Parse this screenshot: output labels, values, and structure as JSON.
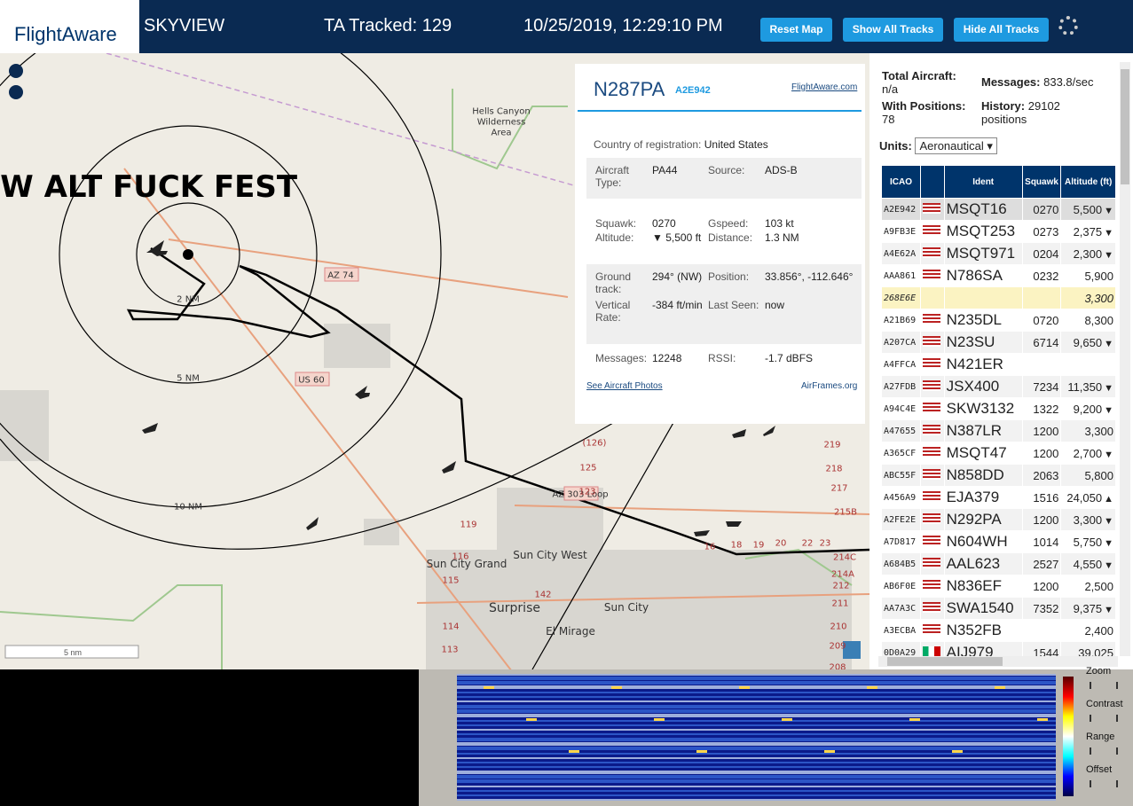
{
  "header": {
    "logo": "FlightAware",
    "app": "SKYVIEW",
    "tracked": "TA Tracked: 129",
    "datetime": "10/25/2019, 12:29:10 PM",
    "buttons": [
      "Reset Map",
      "Show All Tracks",
      "Hide All Tracks"
    ]
  },
  "map": {
    "labels": [
      "LOW ALT FUCK FEST",
      "Hells Canyon",
      "Wilderness",
      "Area",
      "2 NM",
      "5 NM",
      "10 NM",
      "AZ 74",
      "US 60",
      "AZ 303 Loop",
      "Sun City Grand",
      "Sun City West",
      "Surprise",
      "Sun City",
      "El Mirage",
      "(126)",
      "125",
      "123",
      "119",
      "116",
      "115",
      "114",
      "113",
      "142",
      "219",
      "218",
      "217",
      "215B",
      "214C",
      "214A",
      "212",
      "211",
      "210",
      "209",
      "208",
      "16",
      "18",
      "19",
      "20",
      "22",
      "23"
    ],
    "scale": "5 nm"
  },
  "popup": {
    "callsign": "N287PA",
    "icao": "A2E942",
    "link": "FlightAware.com",
    "country_label": "Country of registration:",
    "country": "United States",
    "fields": [
      [
        "Aircraft Type:",
        "PA44",
        "Source:",
        "ADS-B"
      ],
      [
        "Squawk:",
        "0270",
        "Gspeed:",
        "103 kt"
      ],
      [
        "Altitude:",
        "▼ 5,500 ft",
        "Distance:",
        "1.3 NM"
      ],
      [
        "Ground track:",
        "294° (NW)",
        "Position:",
        "33.856°, -112.646°"
      ],
      [
        "Vertical Rate:",
        "-384 ft/min",
        "Last Seen:",
        "now"
      ],
      [
        "Messages:",
        "12248",
        "RSSI:",
        "-1.7 dBFS"
      ]
    ],
    "photos": "See Aircraft Photos",
    "airframes": "AirFrames.org"
  },
  "stats": {
    "total_label": "Total Aircraft:",
    "total": "n/a",
    "messages_label": "Messages:",
    "messages": "833.8/sec",
    "positions_label": "With Positions:",
    "positions": "78",
    "history_label": "History:",
    "history": "29102 positions",
    "units_label": "Units:",
    "units": "Aeronautical"
  },
  "table": {
    "headers": [
      "ICAO",
      "Ident",
      "Squawk",
      "Altitude (ft)"
    ],
    "rows": [
      [
        "A2E942",
        "us",
        "MSQT16",
        "0270",
        "5,500",
        "▼"
      ],
      [
        "A9FB3E",
        "us",
        "MSQT253",
        "0273",
        "2,375",
        "▼"
      ],
      [
        "A4E62A",
        "us",
        "MSQT971",
        "0204",
        "2,300",
        "▼"
      ],
      [
        "AAA861",
        "us",
        "N786SA",
        "0232",
        "5,900",
        null
      ],
      [
        "268E6E",
        null,
        null,
        null,
        "3,300",
        null
      ],
      [
        "A21B69",
        "us",
        "N235DL",
        "0720",
        "8,300",
        null
      ],
      [
        "A207CA",
        "us",
        "N23SU",
        "6714",
        "9,650",
        "▼"
      ],
      [
        "A4FFCA",
        "us",
        "N421ER",
        null,
        null,
        null
      ],
      [
        "A27FDB",
        "us",
        "JSX400",
        "7234",
        "11,350",
        "▼"
      ],
      [
        "A94C4E",
        "us",
        "SKW3132",
        "1322",
        "9,200",
        "▼"
      ],
      [
        "A47655",
        "us",
        "N387LR",
        "1200",
        "3,300",
        null
      ],
      [
        "A365CF",
        "us",
        "MSQT47",
        "1200",
        "2,700",
        "▼"
      ],
      [
        "ABC55F",
        "us",
        "N858DD",
        "2063",
        "5,800",
        null
      ],
      [
        "A456A9",
        "us",
        "EJA379",
        "1516",
        "24,050",
        "▲"
      ],
      [
        "A2FE2E",
        "us",
        "N292PA",
        "1200",
        "3,300",
        "▼"
      ],
      [
        "A7D817",
        "us",
        "N604WH",
        "1014",
        "5,750",
        "▼"
      ],
      [
        "A684B5",
        "us",
        "AAL623",
        "2527",
        "4,550",
        "▼"
      ],
      [
        "AB6F0E",
        "us",
        "N836EF",
        "1200",
        "2,500",
        null
      ],
      [
        "AA7A3C",
        "us",
        "SWA1540",
        "7352",
        "9,375",
        "▼"
      ],
      [
        "A3ECBA",
        "us",
        "N352FB",
        null,
        "2,400",
        null
      ],
      [
        "0D0A29",
        "mx",
        "AIJ979",
        "1544",
        "39,025",
        null
      ]
    ]
  },
  "spectrum": {
    "controls": [
      "Zoom",
      "Contrast",
      "Range",
      "Offset"
    ]
  }
}
